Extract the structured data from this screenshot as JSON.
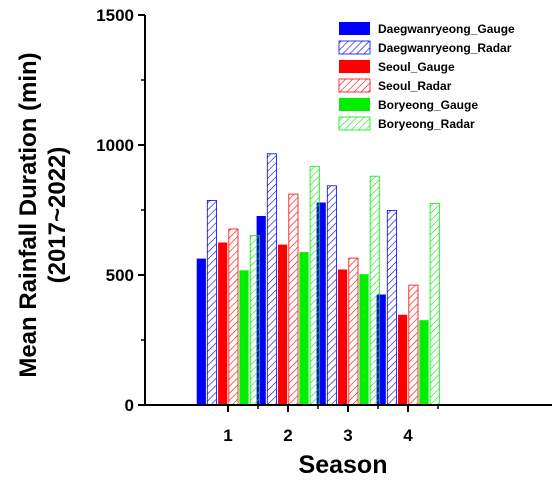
{
  "chart_data": {
    "type": "bar",
    "xlabel": "Season",
    "ylabel_lines": [
      "Mean Rainfall Duration (min)",
      "(2017~2022)"
    ],
    "categories": [
      "1",
      "2",
      "3",
      "4"
    ],
    "ylim": [
      0,
      1500
    ],
    "yticks": [
      "0",
      "500",
      "1000",
      "1500"
    ],
    "legend_position": "top-right",
    "series": [
      {
        "name": "Daegwanryeong_Gauge",
        "color": "#0000ff",
        "style": "solid",
        "values": [
          563,
          727,
          779,
          425
        ]
      },
      {
        "name": "Daegwanryeong_Radar",
        "color": "#0000ff",
        "style": "hatched",
        "values": [
          787,
          966,
          843,
          748
        ]
      },
      {
        "name": "Seoul_Gauge",
        "color": "#ff0000",
        "style": "solid",
        "values": [
          625,
          617,
          521,
          347
        ]
      },
      {
        "name": "Seoul_Radar",
        "color": "#ff0000",
        "style": "hatched",
        "values": [
          677,
          811,
          565,
          461
        ]
      },
      {
        "name": "Boryeong_Gauge",
        "color": "#00ee00",
        "style": "solid",
        "values": [
          518,
          588,
          503,
          326
        ]
      },
      {
        "name": "Boryeong_Radar",
        "color": "#00ee00",
        "style": "hatched",
        "values": [
          652,
          917,
          880,
          775
        ]
      }
    ]
  }
}
